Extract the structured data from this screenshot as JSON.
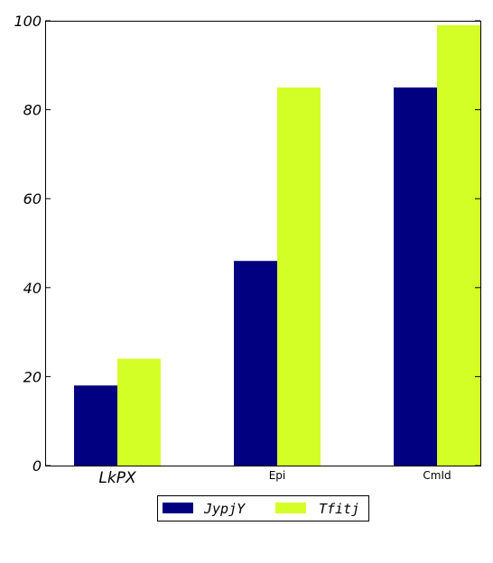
{
  "chart_data": {
    "type": "bar",
    "categories": [
      "LkPX",
      "Epi",
      "CmId"
    ],
    "series": [
      {
        "name": "JypjY",
        "values": [
          18,
          46,
          85
        ]
      },
      {
        "name": "Tfitj",
        "values": [
          24,
          85,
          99
        ]
      }
    ],
    "colors": [
      "#000080",
      "#d4ff26"
    ],
    "ylim": [
      0,
      100
    ],
    "yticks": [
      0,
      20,
      40,
      60,
      80,
      100
    ],
    "grid": false,
    "legend_position": "bottom-center",
    "title": "",
    "xlabel": "",
    "ylabel": ""
  }
}
